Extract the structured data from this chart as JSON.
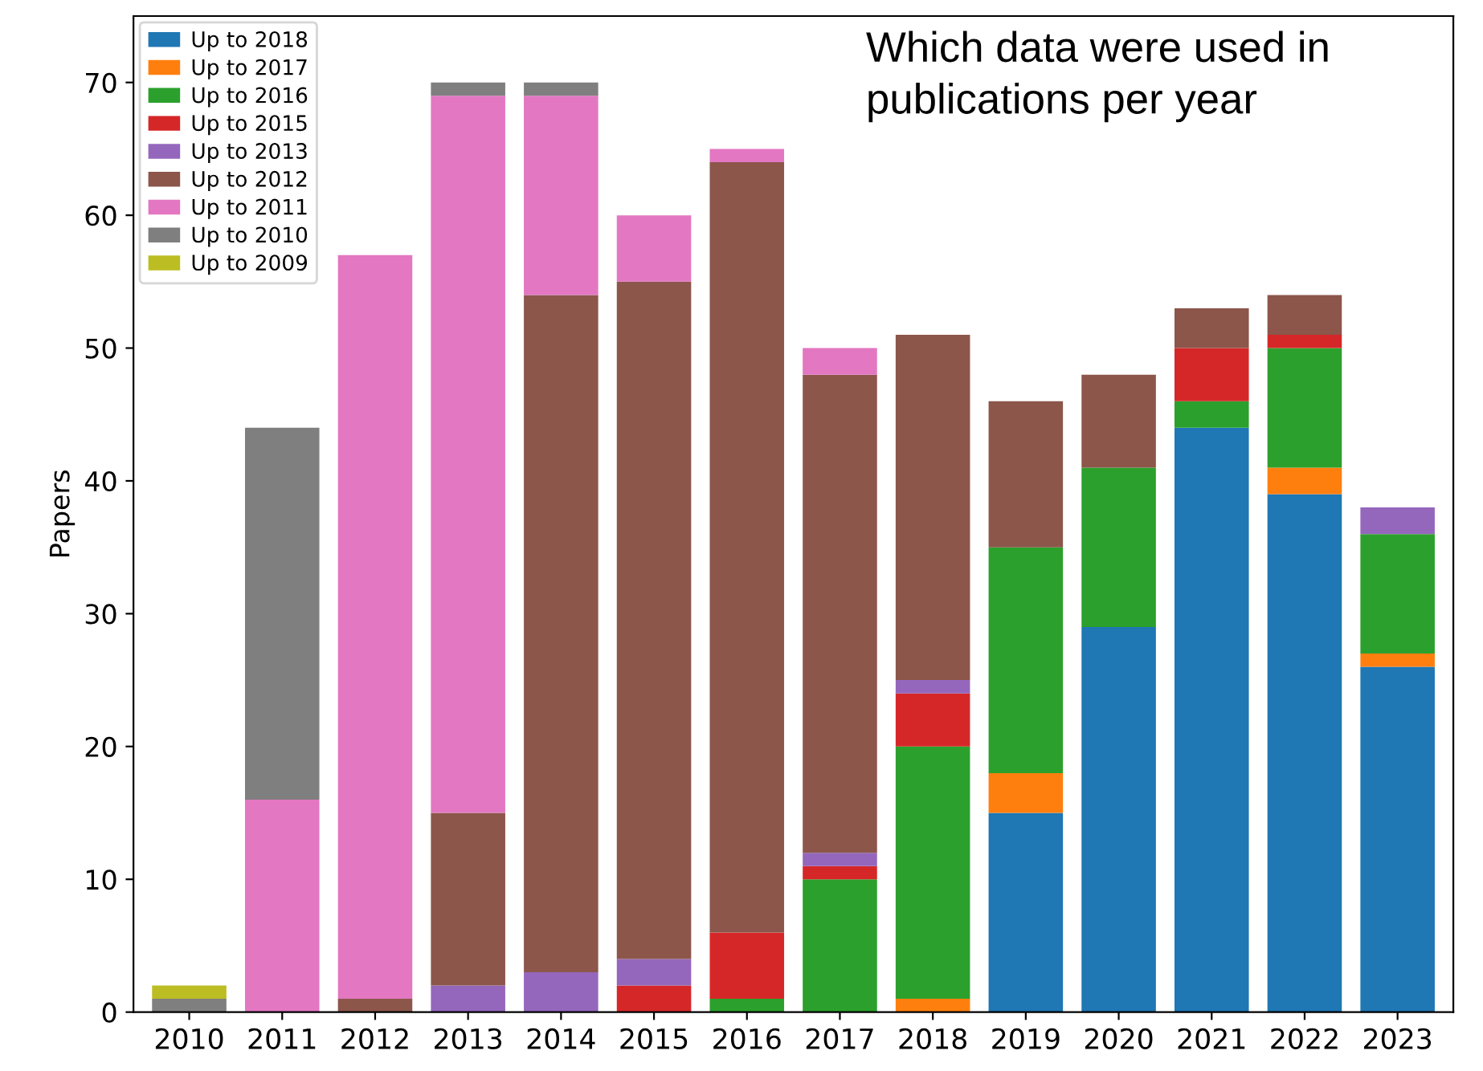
{
  "chart_data": {
    "type": "bar",
    "stacked": true,
    "title": "Which data were used in publications per year",
    "ylabel": "Papers",
    "categories": [
      "2010",
      "2011",
      "2012",
      "2013",
      "2014",
      "2015",
      "2016",
      "2017",
      "2018",
      "2019",
      "2020",
      "2021",
      "2022",
      "2023"
    ],
    "series": [
      {
        "name": "Up to 2018",
        "color": "#1f77b4",
        "values": [
          0,
          0,
          0,
          0,
          0,
          0,
          0,
          0,
          0,
          15,
          29,
          44,
          39,
          26
        ]
      },
      {
        "name": "Up to 2017",
        "color": "#ff7f0e",
        "values": [
          0,
          0,
          0,
          0,
          0,
          0,
          0,
          0,
          1,
          3,
          0,
          0,
          2,
          1
        ]
      },
      {
        "name": "Up to 2016",
        "color": "#2ca02c",
        "values": [
          0,
          0,
          0,
          0,
          0,
          0,
          1,
          10,
          19,
          17,
          12,
          2,
          9,
          9
        ]
      },
      {
        "name": "Up to 2015",
        "color": "#d62728",
        "values": [
          0,
          0,
          0,
          0,
          0,
          2,
          5,
          1,
          4,
          0,
          0,
          4,
          1,
          0
        ]
      },
      {
        "name": "Up to 2013",
        "color": "#9467bd",
        "values": [
          0,
          0,
          0,
          2,
          3,
          2,
          0,
          1,
          1,
          0,
          0,
          0,
          0,
          2
        ]
      },
      {
        "name": "Up to 2012",
        "color": "#8c564b",
        "values": [
          0,
          0,
          1,
          13,
          51,
          51,
          58,
          36,
          26,
          11,
          7,
          3,
          3,
          0
        ]
      },
      {
        "name": "Up to 2011",
        "color": "#e377c2",
        "values": [
          0,
          16,
          56,
          54,
          15,
          5,
          1,
          2,
          0,
          0,
          0,
          0,
          0,
          0
        ]
      },
      {
        "name": "Up to 2010",
        "color": "#7f7f7f",
        "values": [
          1,
          28,
          0,
          1,
          1,
          0,
          0,
          0,
          0,
          0,
          0,
          0,
          0,
          0
        ]
      },
      {
        "name": "Up to 2009",
        "color": "#bcbd22",
        "values": [
          1,
          0,
          0,
          0,
          0,
          0,
          0,
          0,
          0,
          0,
          0,
          0,
          0,
          0
        ]
      }
    ],
    "ylim": [
      0,
      75
    ],
    "yticks": [
      0,
      10,
      20,
      30,
      40,
      50,
      60,
      70
    ],
    "grid": false,
    "legend": "top left"
  }
}
